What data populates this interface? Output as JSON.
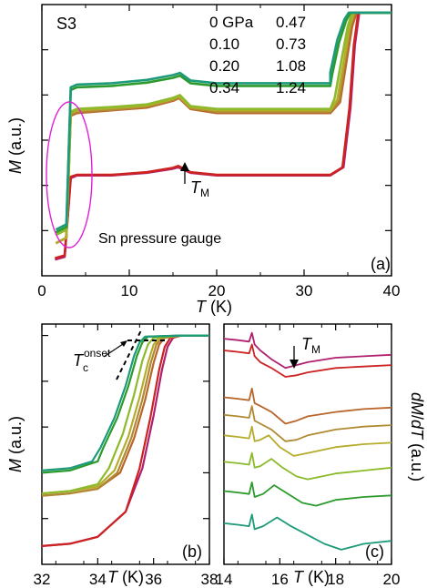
{
  "colors": {
    "p000": "#b0206f",
    "p010": "#cc2222",
    "p020": "#b8662a",
    "p034": "#b08a32",
    "p047": "#b5ac2c",
    "p073": "#8cba2a",
    "p108": "#2c9a2c",
    "p124": "#1c9a7a",
    "gauge": "#e020d8"
  },
  "chart_data": [
    {
      "type": "line",
      "panel_label": "(a)",
      "sample_label": "S3",
      "xlabel_var": "T",
      "xlabel_unit": " (K)",
      "ylabel_var": "M",
      "ylabel_unit": " (a.u.)",
      "xlim": [
        0,
        40
      ],
      "x_ticks": [
        "0",
        "10",
        "20",
        "30",
        "40"
      ],
      "legend": [
        {
          "label": "0 GPa",
          "color_key": "p000"
        },
        {
          "label": "0.10",
          "color_key": "p010"
        },
        {
          "label": "0.20",
          "color_key": "p020"
        },
        {
          "label": "0.34",
          "color_key": "p034"
        },
        {
          "label": "0.47",
          "color_key": "p047"
        },
        {
          "label": "0.73",
          "color_key": "p073"
        },
        {
          "label": "1.08",
          "color_key": "p108"
        },
        {
          "label": "1.24",
          "color_key": "p124"
        }
      ],
      "annotation_tm": {
        "var": "T",
        "sub": "M",
        "x": 15.8
      },
      "gauge_label": "Sn pressure gauge",
      "series": [
        {
          "color_key": "p000",
          "x": [
            1.5,
            2.6,
            3.3,
            4,
            8,
            12,
            15,
            15.6,
            17,
            20,
            25,
            30,
            33,
            34.5,
            35.3,
            35.8,
            36.3,
            40
          ],
          "y": [
            0.06,
            0.07,
            0.36,
            0.37,
            0.37,
            0.38,
            0.395,
            0.4,
            0.38,
            0.37,
            0.37,
            0.37,
            0.37,
            0.4,
            0.62,
            0.85,
            0.97,
            0.97
          ]
        },
        {
          "color_key": "p010",
          "x": [
            1.5,
            2.6,
            3.3,
            4,
            8,
            12,
            15,
            15.6,
            17,
            20,
            25,
            30,
            33,
            34.4,
            35.2,
            35.7,
            36.2,
            40
          ],
          "y": [
            0.065,
            0.075,
            0.365,
            0.372,
            0.372,
            0.382,
            0.398,
            0.405,
            0.382,
            0.372,
            0.372,
            0.372,
            0.372,
            0.4,
            0.62,
            0.85,
            0.97,
            0.97
          ]
        },
        {
          "color_key": "p020",
          "x": [
            1.6,
            2.8,
            3.3,
            4,
            8,
            12,
            15,
            15.7,
            17,
            20,
            25,
            30,
            33,
            34.1,
            34.9,
            35.5,
            36.0,
            40
          ],
          "y": [
            0.12,
            0.14,
            0.59,
            0.6,
            0.61,
            0.62,
            0.645,
            0.655,
            0.615,
            0.6,
            0.6,
            0.6,
            0.6,
            0.64,
            0.8,
            0.92,
            0.97,
            0.97
          ]
        },
        {
          "color_key": "p034",
          "x": [
            1.6,
            2.8,
            3.3,
            4,
            8,
            12,
            15,
            15.7,
            17,
            20,
            25,
            30,
            33,
            34.0,
            34.7,
            35.3,
            35.8,
            40
          ],
          "y": [
            0.12,
            0.14,
            0.595,
            0.605,
            0.612,
            0.624,
            0.648,
            0.658,
            0.618,
            0.605,
            0.605,
            0.605,
            0.605,
            0.645,
            0.8,
            0.92,
            0.97,
            0.97
          ]
        },
        {
          "color_key": "p047",
          "x": [
            1.6,
            2.8,
            3.3,
            4,
            8,
            12,
            15,
            15.7,
            17,
            20,
            25,
            30,
            33,
            33.8,
            34.6,
            35.2,
            35.7,
            40
          ],
          "y": [
            0.12,
            0.14,
            0.6,
            0.61,
            0.618,
            0.628,
            0.652,
            0.662,
            0.622,
            0.61,
            0.61,
            0.61,
            0.61,
            0.65,
            0.8,
            0.92,
            0.97,
            0.97
          ]
        },
        {
          "color_key": "p073",
          "x": [
            1.6,
            2.8,
            3.3,
            4,
            8,
            12,
            15,
            15.8,
            17,
            20,
            25,
            30,
            33,
            33.5,
            34.3,
            35.0,
            35.5,
            40
          ],
          "y": [
            0.15,
            0.17,
            0.605,
            0.615,
            0.622,
            0.632,
            0.656,
            0.666,
            0.626,
            0.615,
            0.615,
            0.615,
            0.615,
            0.655,
            0.8,
            0.92,
            0.97,
            0.97
          ]
        },
        {
          "color_key": "p108",
          "x": [
            1.6,
            2.8,
            3.3,
            4,
            8,
            12,
            15,
            15.8,
            17,
            20,
            25,
            30,
            33,
            33.2,
            34.0,
            34.8,
            35.3,
            40
          ],
          "y": [
            0.16,
            0.18,
            0.685,
            0.695,
            0.7,
            0.712,
            0.73,
            0.738,
            0.71,
            0.7,
            0.7,
            0.7,
            0.7,
            0.74,
            0.86,
            0.94,
            0.97,
            0.97
          ]
        },
        {
          "color_key": "p124",
          "x": [
            1.6,
            2.8,
            3.3,
            4,
            8,
            12,
            15,
            15.8,
            17,
            20,
            25,
            30,
            33,
            33.0,
            33.8,
            34.6,
            35.1,
            40
          ],
          "y": [
            0.17,
            0.19,
            0.695,
            0.705,
            0.71,
            0.722,
            0.74,
            0.748,
            0.72,
            0.71,
            0.71,
            0.71,
            0.71,
            0.75,
            0.87,
            0.945,
            0.97,
            0.97
          ]
        }
      ]
    },
    {
      "type": "line",
      "panel_label": "(b)",
      "xlabel_var": "T",
      "xlabel_unit": " (K)",
      "ylabel_var": "M",
      "ylabel_unit": " (a.u.)",
      "xlim": [
        32,
        38
      ],
      "x_ticks": [
        "32",
        "34",
        "36",
        "38"
      ],
      "annotation_tc": {
        "var": "T",
        "sub": "c",
        "sup": "onset"
      },
      "series": [
        {
          "color_key": "p000",
          "x": [
            32,
            33,
            34,
            35,
            35.6,
            36,
            36.3,
            36.5,
            36.7,
            37,
            38
          ],
          "y": [
            0.08,
            0.09,
            0.12,
            0.23,
            0.42,
            0.65,
            0.85,
            0.95,
            0.99,
            1.0,
            1.0
          ]
        },
        {
          "color_key": "p010",
          "x": [
            32,
            33,
            34,
            35,
            35.5,
            35.9,
            36.2,
            36.4,
            36.6,
            37,
            38
          ],
          "y": [
            0.08,
            0.09,
            0.12,
            0.23,
            0.42,
            0.65,
            0.85,
            0.95,
            0.99,
            1.0,
            1.0
          ]
        },
        {
          "color_key": "p020",
          "x": [
            32,
            33,
            34,
            34.8,
            35.3,
            35.7,
            36.0,
            36.2,
            36.4,
            37,
            38
          ],
          "y": [
            0.3,
            0.31,
            0.33,
            0.4,
            0.55,
            0.72,
            0.88,
            0.96,
            0.99,
            1.0,
            1.0
          ]
        },
        {
          "color_key": "p034",
          "x": [
            32,
            33,
            34,
            34.7,
            35.2,
            35.6,
            35.9,
            36.1,
            36.3,
            37,
            38
          ],
          "y": [
            0.3,
            0.31,
            0.33,
            0.4,
            0.55,
            0.72,
            0.88,
            0.96,
            0.99,
            1.0,
            1.0
          ]
        },
        {
          "color_key": "p047",
          "x": [
            32,
            33,
            34,
            34.6,
            35.1,
            35.5,
            35.8,
            36.0,
            36.2,
            37,
            38
          ],
          "y": [
            0.31,
            0.32,
            0.34,
            0.41,
            0.56,
            0.73,
            0.88,
            0.96,
            0.99,
            1.0,
            1.0
          ]
        },
        {
          "color_key": "p073",
          "x": [
            32,
            33,
            34,
            34.4,
            34.9,
            35.3,
            35.6,
            35.8,
            36.0,
            37,
            38
          ],
          "y": [
            0.31,
            0.32,
            0.35,
            0.42,
            0.57,
            0.74,
            0.89,
            0.96,
            0.99,
            1.0,
            1.0
          ]
        },
        {
          "color_key": "p108",
          "x": [
            32,
            33,
            34,
            34.2,
            34.7,
            35.1,
            35.4,
            35.6,
            35.8,
            37,
            38
          ],
          "y": [
            0.4,
            0.41,
            0.45,
            0.51,
            0.64,
            0.78,
            0.91,
            0.97,
            0.995,
            1.0,
            1.0
          ]
        },
        {
          "color_key": "p124",
          "x": [
            32,
            33,
            33.8,
            34.1,
            34.6,
            35.0,
            35.3,
            35.5,
            35.7,
            37,
            38
          ],
          "y": [
            0.41,
            0.42,
            0.45,
            0.51,
            0.64,
            0.78,
            0.91,
            0.97,
            0.995,
            1.0,
            1.0
          ]
        }
      ]
    },
    {
      "type": "line",
      "panel_label": "(c)",
      "xlabel_var": "T",
      "xlabel_unit": " (K)",
      "ylabel_var1": "dM",
      "ylabel_sep": "/",
      "ylabel_var2": "dT",
      "ylabel_unit": " (a.u.)",
      "xlim": [
        14,
        20
      ],
      "x_ticks": [
        "14",
        "16",
        "18",
        "20"
      ],
      "annotation_tm": {
        "var": "T",
        "sub": "M",
        "x": 16.05
      },
      "series": [
        {
          "color_key": "p000",
          "x": [
            14,
            14.5,
            14.9,
            15.0,
            15.1,
            15.3,
            15.7,
            16.2,
            16.6,
            17,
            18,
            19,
            20
          ],
          "y": [
            0.97,
            0.965,
            0.96,
            0.99,
            0.95,
            0.93,
            0.9,
            0.87,
            0.88,
            0.89,
            0.905,
            0.91,
            0.915
          ]
        },
        {
          "color_key": "p010",
          "x": [
            14,
            14.5,
            14.9,
            15.0,
            15.1,
            15.3,
            15.7,
            16.2,
            16.6,
            17,
            18,
            19,
            20
          ],
          "y": [
            0.93,
            0.925,
            0.92,
            0.95,
            0.91,
            0.89,
            0.87,
            0.84,
            0.845,
            0.855,
            0.87,
            0.875,
            0.88
          ]
        },
        {
          "color_key": "p020",
          "x": [
            14,
            14.5,
            14.9,
            15.0,
            15.1,
            15.3,
            15.7,
            16.2,
            16.6,
            17,
            18,
            19,
            20
          ],
          "y": [
            0.77,
            0.765,
            0.76,
            0.8,
            0.75,
            0.74,
            0.72,
            0.68,
            0.69,
            0.705,
            0.72,
            0.73,
            0.735
          ]
        },
        {
          "color_key": "p034",
          "x": [
            14,
            14.5,
            14.9,
            15.0,
            15.1,
            15.3,
            15.7,
            16.2,
            16.6,
            17,
            18,
            19,
            20
          ],
          "y": [
            0.71,
            0.705,
            0.7,
            0.74,
            0.69,
            0.68,
            0.66,
            0.62,
            0.625,
            0.64,
            0.66,
            0.67,
            0.675
          ]
        },
        {
          "color_key": "p047",
          "x": [
            14,
            14.5,
            14.9,
            15.0,
            15.1,
            15.3,
            15.6,
            16.0,
            16.5,
            17,
            18,
            19,
            20
          ],
          "y": [
            0.64,
            0.635,
            0.63,
            0.67,
            0.62,
            0.625,
            0.64,
            0.6,
            0.57,
            0.58,
            0.6,
            0.61,
            0.615
          ]
        },
        {
          "color_key": "p073",
          "x": [
            14,
            14.5,
            14.9,
            15.0,
            15.1,
            15.3,
            15.7,
            16.1,
            16.6,
            17,
            18,
            19,
            20
          ],
          "y": [
            0.55,
            0.545,
            0.54,
            0.58,
            0.53,
            0.535,
            0.56,
            0.53,
            0.5,
            0.49,
            0.51,
            0.52,
            0.53
          ]
        },
        {
          "color_key": "p108",
          "x": [
            14,
            14.5,
            14.9,
            15.0,
            15.1,
            15.4,
            15.8,
            16.3,
            16.8,
            17.3,
            18,
            19,
            20
          ],
          "y": [
            0.45,
            0.445,
            0.44,
            0.48,
            0.43,
            0.44,
            0.47,
            0.44,
            0.41,
            0.4,
            0.42,
            0.43,
            0.435
          ]
        },
        {
          "color_key": "p124",
          "x": [
            14,
            14.5,
            14.9,
            15.0,
            15.1,
            15.4,
            15.9,
            16.4,
            17,
            17.6,
            18.2,
            19,
            20
          ],
          "y": [
            0.34,
            0.335,
            0.33,
            0.37,
            0.32,
            0.33,
            0.36,
            0.33,
            0.3,
            0.27,
            0.25,
            0.27,
            0.28
          ]
        }
      ]
    }
  ]
}
